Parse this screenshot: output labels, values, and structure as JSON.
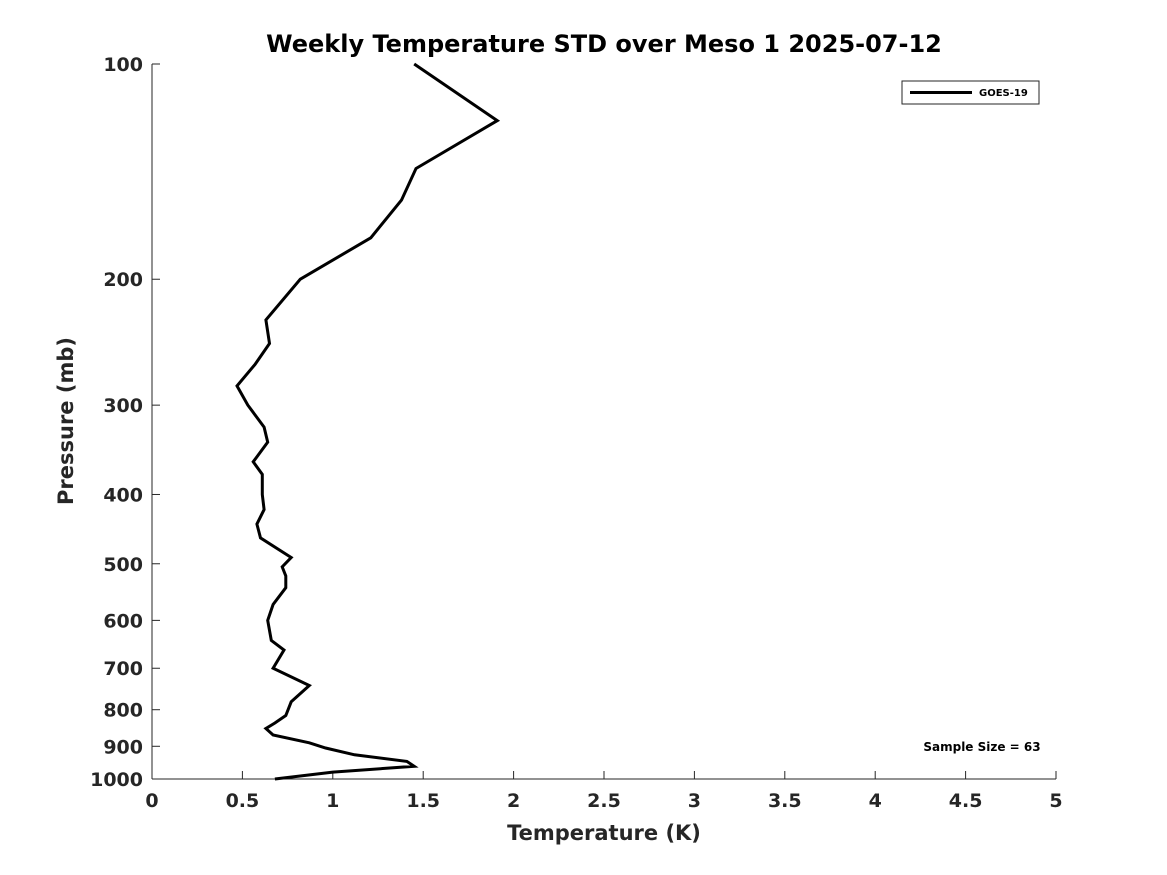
{
  "chart_data": {
    "type": "line",
    "title": "Weekly Temperature STD over Meso 1 2025-07-12",
    "xlabel": "Temperature (K)",
    "ylabel": "Pressure (mb)",
    "xlim": [
      0,
      5
    ],
    "ylim": [
      100,
      1000
    ],
    "y_scale": "log",
    "y_reversed": true,
    "x_ticks": [
      0,
      0.5,
      1,
      1.5,
      2,
      2.5,
      3,
      3.5,
      4,
      4.5,
      5
    ],
    "x_tick_labels": [
      "0",
      "0.5",
      "1",
      "1.5",
      "2",
      "2.5",
      "3",
      "3.5",
      "4",
      "4.5",
      "5"
    ],
    "y_ticks": [
      100,
      200,
      300,
      400,
      500,
      600,
      700,
      800,
      900,
      1000
    ],
    "y_tick_labels": [
      "100",
      "200",
      "300",
      "400",
      "500",
      "600",
      "700",
      "800",
      "900",
      "1000"
    ],
    "grid": false,
    "legend_position": "top-right",
    "line_color": "#000000",
    "series": [
      {
        "name": "GOES-19",
        "points": [
          [
            1.45,
            100
          ],
          [
            1.91,
            120
          ],
          [
            1.46,
            140
          ],
          [
            1.38,
            155
          ],
          [
            1.21,
            175
          ],
          [
            0.82,
            200
          ],
          [
            0.63,
            228
          ],
          [
            0.65,
            246
          ],
          [
            0.57,
            263
          ],
          [
            0.47,
            282
          ],
          [
            0.53,
            300
          ],
          [
            0.62,
            322
          ],
          [
            0.64,
            338
          ],
          [
            0.56,
            360
          ],
          [
            0.61,
            375
          ],
          [
            0.61,
            400
          ],
          [
            0.62,
            420
          ],
          [
            0.58,
            440
          ],
          [
            0.6,
            460
          ],
          [
            0.77,
            490
          ],
          [
            0.72,
            505
          ],
          [
            0.74,
            520
          ],
          [
            0.74,
            540
          ],
          [
            0.67,
            570
          ],
          [
            0.64,
            600
          ],
          [
            0.66,
            640
          ],
          [
            0.73,
            660
          ],
          [
            0.67,
            700
          ],
          [
            0.87,
            740
          ],
          [
            0.77,
            780
          ],
          [
            0.74,
            815
          ],
          [
            0.68,
            835
          ],
          [
            0.63,
            850
          ],
          [
            0.67,
            868
          ],
          [
            0.87,
            890
          ],
          [
            0.96,
            905
          ],
          [
            1.12,
            925
          ],
          [
            1.41,
            945
          ],
          [
            1.45,
            960
          ],
          [
            1.0,
            978
          ],
          [
            0.68,
            1000
          ]
        ]
      }
    ],
    "annotations": [
      "Sample Size = 63"
    ]
  }
}
